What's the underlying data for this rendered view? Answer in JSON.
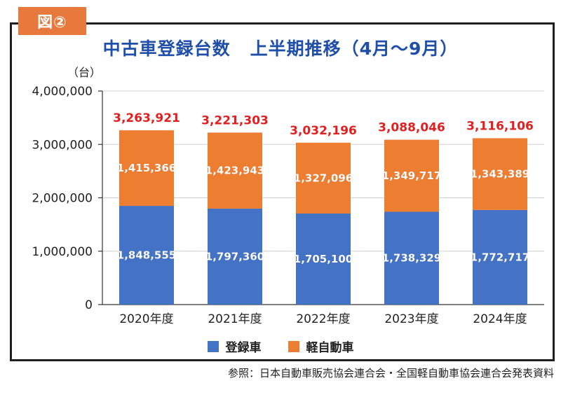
{
  "badge": "図②",
  "title_main": "中古車登録台数",
  "title_sub": "上半期推移（4月〜9月）",
  "unit_label": "（台）",
  "source": "参照：日本自動車販売協会連合会・全国軽自動車協会連合会発表資料",
  "colors": {
    "registered": "#4472c4",
    "kei": "#ed7d31",
    "total": "#e02020",
    "axis": "#333333",
    "grid": "#d0d0d0"
  },
  "chart_data": {
    "type": "bar",
    "stacked": true,
    "categories": [
      "2020年度",
      "2021年度",
      "2022年度",
      "2023年度",
      "2024年度"
    ],
    "series": [
      {
        "name": "登録車",
        "values": [
          1848555,
          1797360,
          1705100,
          1738329,
          1772717
        ]
      },
      {
        "name": "軽自動車",
        "values": [
          1415366,
          1423943,
          1327096,
          1349717,
          1343389
        ]
      }
    ],
    "totals": [
      3263921,
      3221303,
      3032196,
      3088046,
      3116106
    ],
    "ylim": [
      0,
      4000000
    ],
    "yticks": [
      0,
      1000000,
      2000000,
      3000000,
      4000000
    ],
    "ytick_labels": [
      "0",
      "1,000,000",
      "2,000,000",
      "3,000,000",
      "4,000,000"
    ],
    "grid": true,
    "legend_position": "bottom"
  }
}
